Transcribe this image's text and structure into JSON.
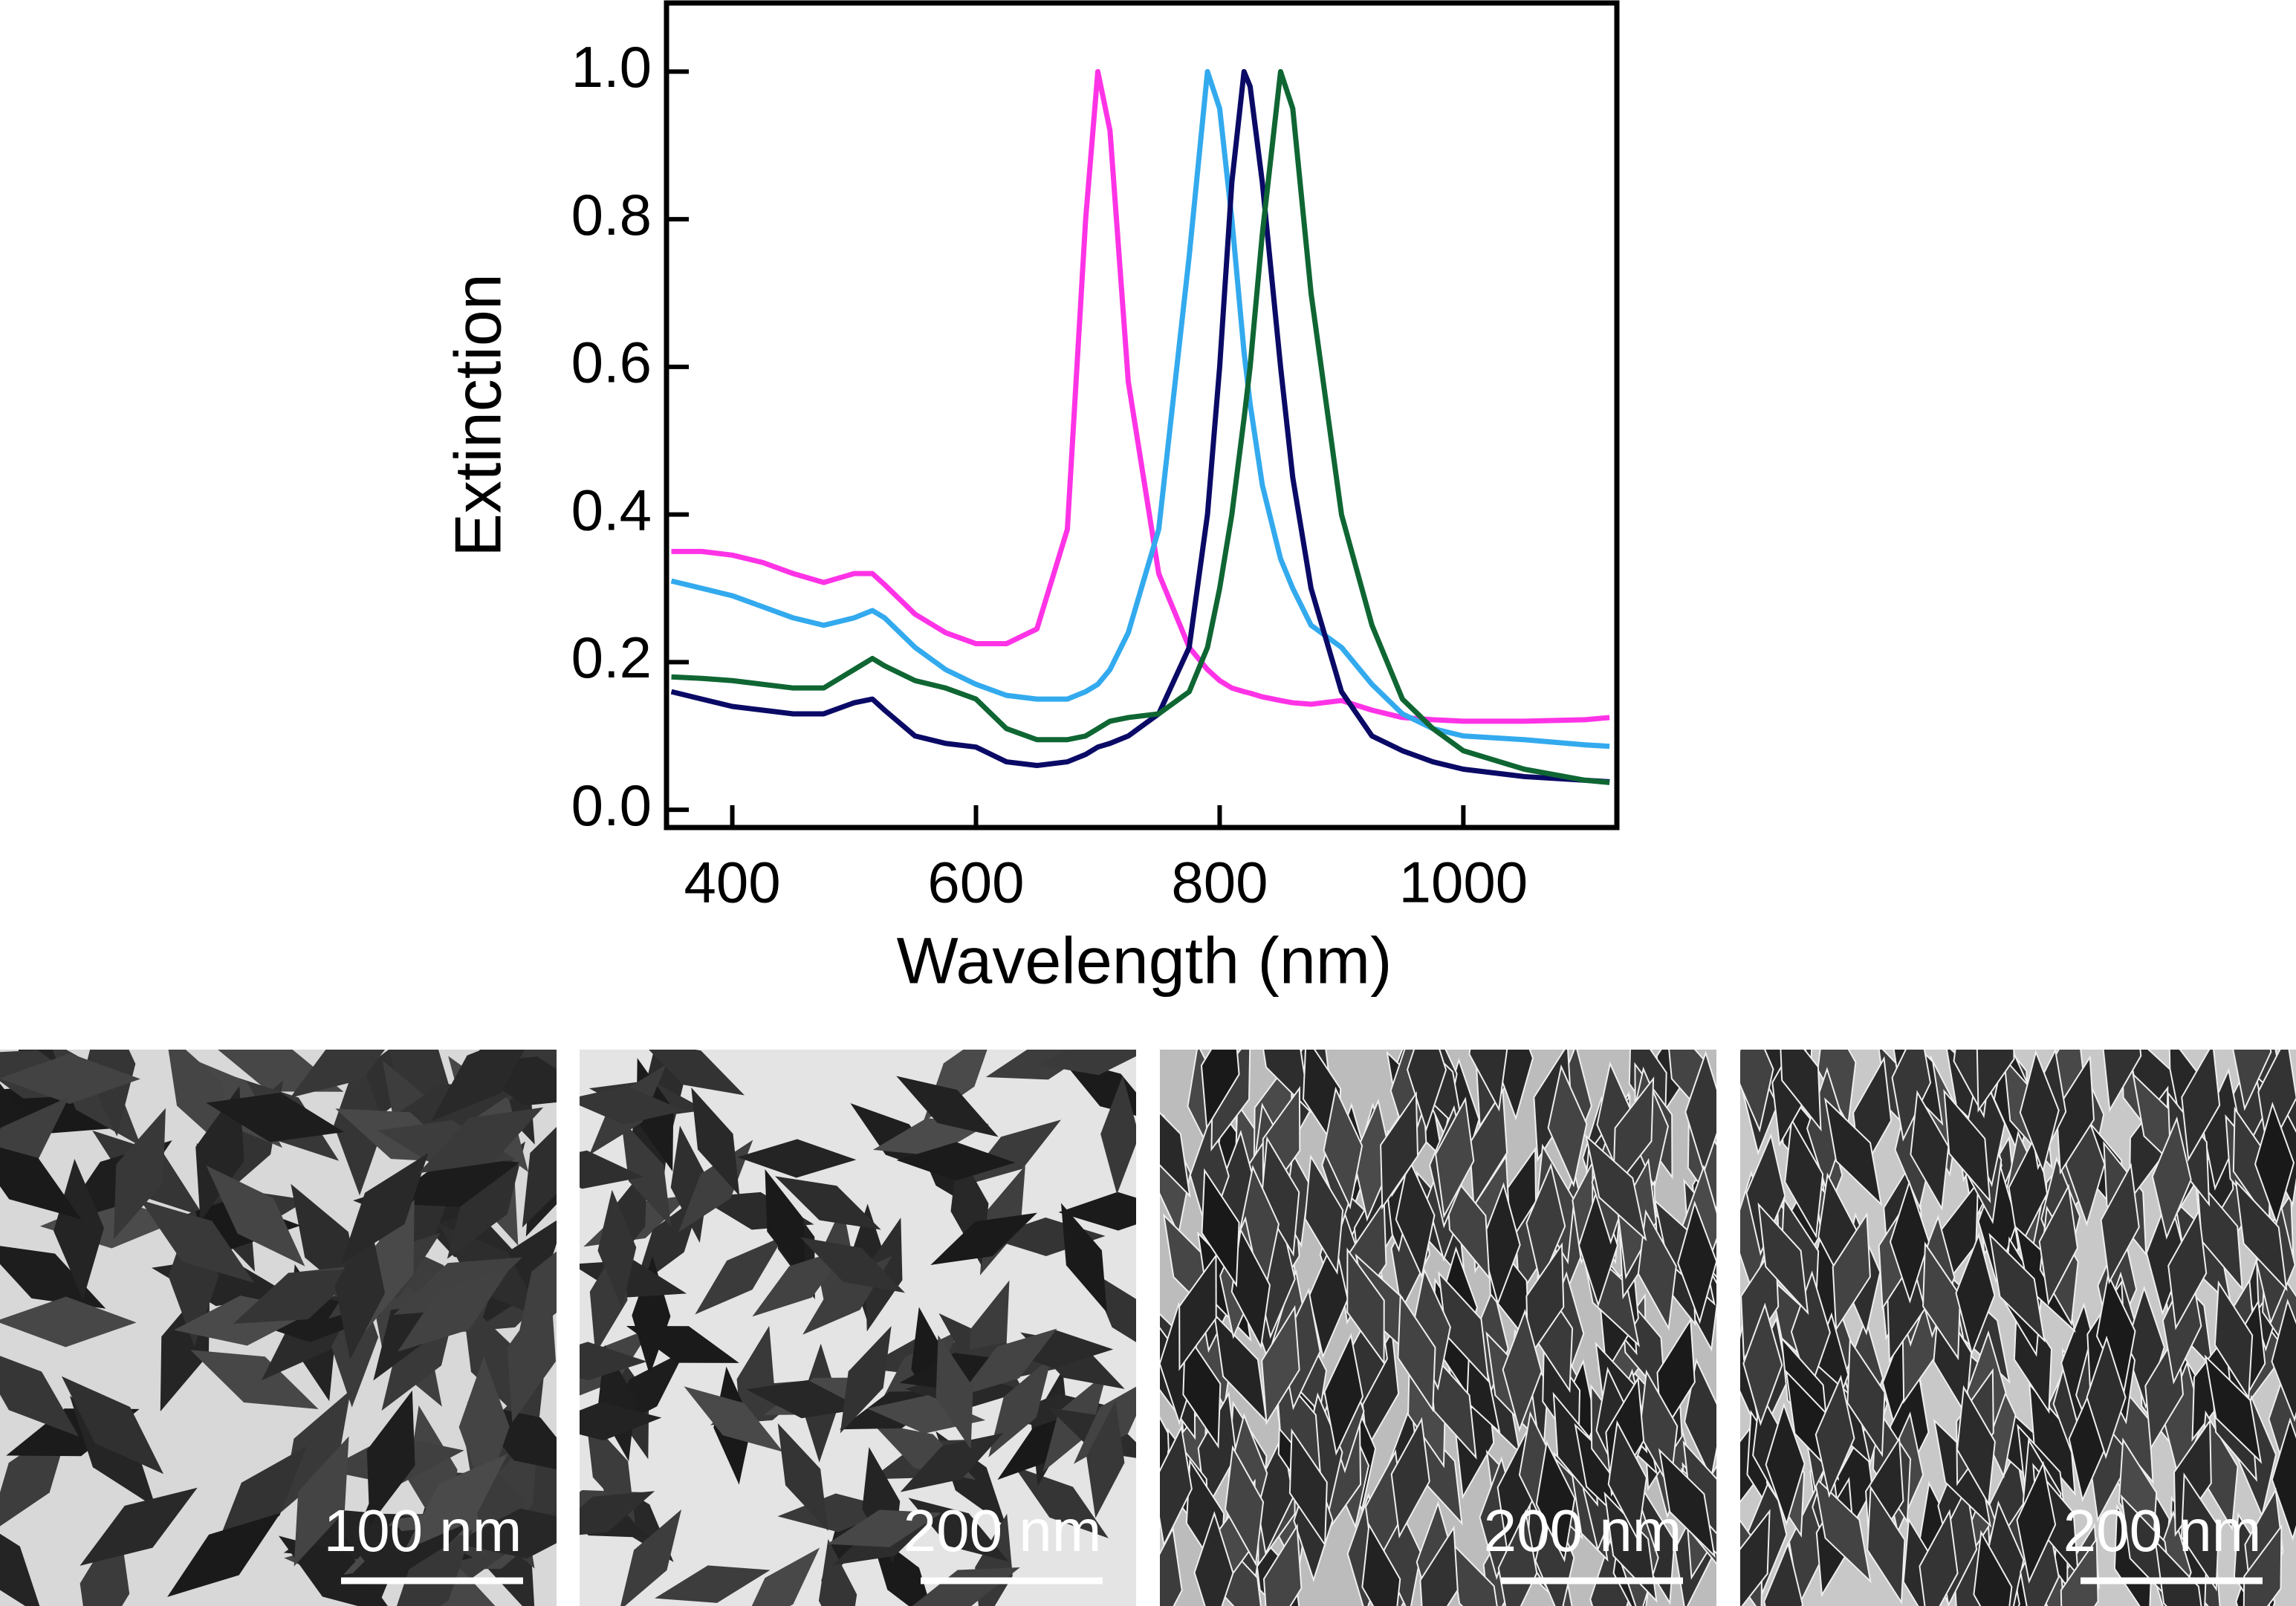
{
  "chart_data": {
    "type": "line",
    "xlabel": "Wavelength (nm)",
    "ylabel": "Extinction",
    "x": [
      350,
      375,
      400,
      425,
      450,
      475,
      500,
      515,
      525,
      550,
      575,
      600,
      625,
      650,
      675,
      690,
      700,
      710,
      725,
      750,
      775,
      790,
      800,
      810,
      820,
      825,
      835,
      850,
      860,
      875,
      900,
      925,
      950,
      975,
      1000,
      1050,
      1100,
      1120
    ],
    "series": [
      {
        "color": "#ff33e6",
        "values": [
          0.35,
          0.35,
          0.345,
          0.335,
          0.32,
          0.308,
          0.32,
          0.32,
          0.305,
          0.265,
          0.24,
          0.225,
          0.225,
          0.245,
          0.38,
          0.8,
          1.0,
          0.92,
          0.58,
          0.32,
          0.22,
          0.19,
          0.175,
          0.165,
          0.16,
          0.158,
          0.153,
          0.148,
          0.145,
          0.143,
          0.148,
          0.135,
          0.125,
          0.122,
          0.12,
          0.12,
          0.122,
          0.125
        ]
      },
      {
        "color": "#33aaee",
        "values": [
          0.31,
          0.3,
          0.29,
          0.275,
          0.26,
          0.25,
          0.26,
          0.27,
          0.26,
          0.22,
          0.19,
          0.17,
          0.155,
          0.15,
          0.15,
          0.16,
          0.17,
          0.19,
          0.24,
          0.38,
          0.75,
          1.0,
          0.95,
          0.8,
          0.62,
          0.55,
          0.44,
          0.34,
          0.3,
          0.25,
          0.22,
          0.17,
          0.13,
          0.11,
          0.1,
          0.095,
          0.088,
          0.086
        ]
      },
      {
        "color": "#0a0a66",
        "values": [
          0.16,
          0.15,
          0.14,
          0.135,
          0.13,
          0.13,
          0.145,
          0.15,
          0.135,
          0.1,
          0.09,
          0.085,
          0.065,
          0.06,
          0.065,
          0.075,
          0.085,
          0.09,
          0.1,
          0.13,
          0.22,
          0.4,
          0.6,
          0.85,
          1.0,
          0.98,
          0.85,
          0.6,
          0.45,
          0.3,
          0.16,
          0.1,
          0.08,
          0.065,
          0.055,
          0.045,
          0.04,
          0.038
        ]
      },
      {
        "color": "#0f6633",
        "values": [
          0.18,
          0.178,
          0.175,
          0.17,
          0.165,
          0.165,
          0.19,
          0.205,
          0.195,
          0.175,
          0.165,
          0.15,
          0.11,
          0.095,
          0.095,
          0.1,
          0.11,
          0.12,
          0.125,
          0.13,
          0.16,
          0.22,
          0.3,
          0.4,
          0.53,
          0.6,
          0.78,
          1.0,
          0.95,
          0.7,
          0.4,
          0.25,
          0.15,
          0.11,
          0.08,
          0.055,
          0.04,
          0.037
        ]
      }
    ],
    "xlim": [
      346,
      1126
    ],
    "xticks": [
      400,
      600,
      800,
      1000
    ],
    "ylim": [
      -0.024,
      1.093
    ],
    "yticks": [
      {
        "value": 0,
        "label": "0.0"
      },
      {
        "value": 0.2,
        "label": "0.2"
      },
      {
        "value": 0.4,
        "label": "0.4"
      },
      {
        "value": 0.6,
        "label": "0.6"
      },
      {
        "value": 0.8,
        "label": "0.8"
      },
      {
        "value": 1.0,
        "label": "1.0"
      }
    ]
  },
  "images": [
    {
      "scale_bar": "100 nm"
    },
    {
      "scale_bar": "200 nm"
    },
    {
      "scale_bar": "200 nm"
    },
    {
      "scale_bar": "200 nm"
    }
  ]
}
